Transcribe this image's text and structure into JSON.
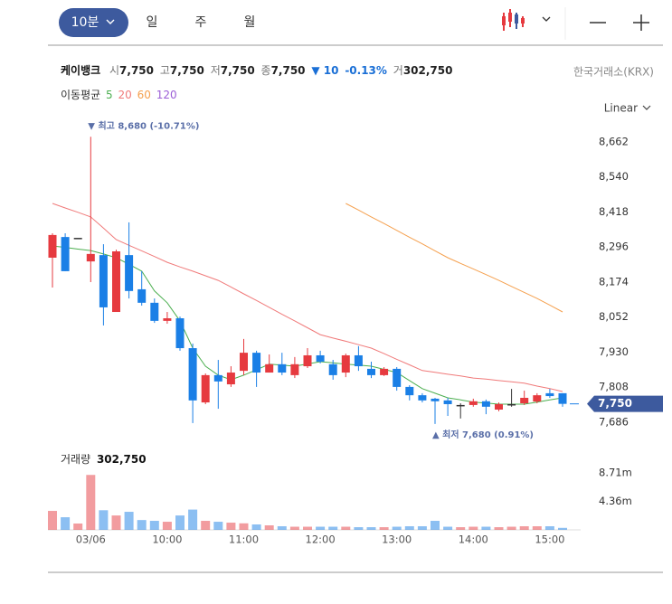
{
  "toolbar": {
    "intervals": [
      "10분",
      "일",
      "주",
      "월"
    ],
    "scale": "Linear"
  },
  "header": {
    "name": "케이뱅크",
    "quote": [
      {
        "label": "시",
        "value": "7,750"
      },
      {
        "label": "고",
        "value": "7,750"
      },
      {
        "label": "저",
        "value": "7,750"
      },
      {
        "label": "종",
        "value": "7,750"
      }
    ],
    "change": "▼ 10",
    "change_pct": "-0.13%",
    "volume_label": "거",
    "volume": "302,750",
    "exchange": "한국거래소(KRX)"
  },
  "chart_data": {
    "type": "candlestick",
    "ma_label": "이동평균",
    "categories": [
      null,
      null,
      null,
      "03/06",
      null,
      null,
      null,
      null,
      null,
      "10:00",
      null,
      null,
      null,
      null,
      null,
      "11:00",
      null,
      null,
      null,
      null,
      null,
      "12:00",
      null,
      null,
      null,
      null,
      null,
      "13:00",
      null,
      null,
      null,
      null,
      null,
      "14:00",
      null,
      null,
      null,
      null,
      null,
      "15:00",
      null
    ],
    "open": [
      8259,
      8331,
      8328,
      8246,
      8268,
      8070,
      8268,
      8149,
      8102,
      8039,
      8048,
      7944,
      7755,
      7850,
      7818,
      7865,
      7928,
      7859,
      7888,
      7850,
      7881,
      7919,
      7888,
      7859,
      7919,
      7872,
      7850,
      7872,
      7809,
      7780,
      7768,
      7762,
      7746,
      7746,
      7759,
      7730,
      7749,
      7752,
      7758,
      7787,
      7787
    ],
    "high": [
      8344,
      8344,
      8328,
      8680,
      8306,
      8287,
      8382,
      8212,
      8117,
      8070,
      8054,
      7960,
      7856,
      7903,
      7881,
      7976,
      7935,
      7922,
      7928,
      7913,
      7944,
      7935,
      7903,
      7925,
      7951,
      7897,
      7878,
      7878,
      7815,
      7787,
      7771,
      7771,
      7752,
      7768,
      7765,
      7755,
      7802,
      7796,
      7787,
      7802,
      7787
    ],
    "low": [
      8155,
      8212,
      8328,
      8174,
      8023,
      8070,
      8117,
      8092,
      8032,
      8029,
      7935,
      7683,
      7749,
      7733,
      7809,
      7850,
      7809,
      7859,
      7850,
      7840,
      7875,
      7891,
      7834,
      7843,
      7865,
      7840,
      7847,
      7796,
      7762,
      7755,
      7680,
      7708,
      7699,
      7740,
      7714,
      7724,
      7740,
      7746,
      7752,
      7771,
      7740
    ],
    "close": [
      8338,
      8212,
      8328,
      8272,
      8086,
      8281,
      8143,
      8102,
      8039,
      8048,
      7944,
      7762,
      7850,
      7828,
      7859,
      7928,
      7859,
      7888,
      7859,
      7888,
      7919,
      7897,
      7850,
      7919,
      7881,
      7850,
      7872,
      7809,
      7780,
      7762,
      7759,
      7749,
      7746,
      7759,
      7740,
      7749,
      7749,
      7771,
      7780,
      7777,
      7750
    ],
    "up_color": "#e63a3f",
    "down_color": "#1a7fe6",
    "flat_color": "#333333",
    "ylim": [
      7645,
      8747
    ],
    "yticks": [
      {
        "value": 7686,
        "label": "7,686"
      },
      {
        "value": 7808,
        "label": "7,808"
      },
      {
        "value": 7930,
        "label": "7,930"
      },
      {
        "value": 8052,
        "label": "8,052"
      },
      {
        "value": 8174,
        "label": "8,174"
      },
      {
        "value": 8296,
        "label": "8,296"
      },
      {
        "value": 8418,
        "label": "8,418"
      },
      {
        "value": 8540,
        "label": "8,540"
      },
      {
        "value": 8662,
        "label": "8,662"
      }
    ],
    "last_price": {
      "value": 7750,
      "label": "7,750"
    },
    "high_annotation": "▼ 최고 8,680 (-10.71%)",
    "low_annotation": "▲ 최저 7,680 (0.91%)",
    "series": [
      {
        "name": "5",
        "color": "#4caf50",
        "values": [
          8300,
          8295,
          8289,
          8284,
          8272,
          8259,
          8236,
          8212,
          8143,
          8102,
          8039,
          7944,
          7881,
          7850,
          7834,
          7850,
          7869,
          7888,
          7885,
          7881,
          7889,
          7897,
          7893,
          7888,
          7885,
          7881,
          7870,
          7859,
          7831,
          7803,
          7787,
          7771,
          7764,
          7756,
          7753,
          7749,
          7749,
          7749,
          7756,
          7764,
          7771
        ]
      },
      {
        "name": "20",
        "color": "#f07a7a",
        "values": [
          8448,
          8432,
          8417,
          8401,
          8362,
          8322,
          8302,
          8283,
          8263,
          8243,
          8227,
          8212,
          8196,
          8180,
          8157,
          8133,
          8110,
          8086,
          8062,
          8039,
          8015,
          7991,
          7979,
          7968,
          7956,
          7944,
          7925,
          7905,
          7886,
          7866,
          7860,
          7853,
          7847,
          7840,
          7836,
          7831,
          7827,
          7822,
          7812,
          7803,
          7793
        ]
      },
      {
        "name": "60",
        "color": "#f5a04e",
        "values": [
          null,
          null,
          null,
          null,
          null,
          null,
          null,
          null,
          null,
          null,
          null,
          null,
          null,
          null,
          null,
          null,
          null,
          null,
          null,
          null,
          null,
          null,
          null,
          8448,
          8425,
          8401,
          8378,
          8354,
          8330,
          8307,
          8283,
          8259,
          8239,
          8220,
          8200,
          8180,
          8159,
          8138,
          8117,
          8094,
          8070
        ]
      },
      {
        "name": "120",
        "color": "#9c5fd6",
        "values": [
          null,
          null,
          null,
          null,
          null,
          null,
          null,
          null,
          null,
          null,
          null,
          null,
          null,
          null,
          null,
          null,
          null,
          null,
          null,
          null,
          null,
          null,
          null,
          null,
          null,
          null,
          null,
          null,
          null,
          null,
          null,
          null,
          null,
          null,
          null,
          null,
          null,
          null,
          null,
          null,
          null
        ]
      }
    ],
    "volume": {
      "label": "거래량",
      "value_label": "302,750",
      "values": [
        2900000,
        1930000,
        970000,
        8400000,
        3000000,
        2200000,
        2760000,
        1500000,
        1380000,
        1240000,
        2200000,
        3100000,
        1380000,
        1240000,
        1100000,
        1000000,
        830000,
        690000,
        550000,
        480000,
        480000,
        480000,
        480000,
        480000,
        410000,
        410000,
        410000,
        480000,
        550000,
        550000,
        1380000,
        480000,
        410000,
        480000,
        480000,
        410000,
        480000,
        550000,
        550000,
        550000,
        302750
      ],
      "ylim": [
        0,
        9540000
      ],
      "yticks": [
        {
          "value": 4360000,
          "label": "4.36m"
        },
        {
          "value": 8710000,
          "label": "8.71m"
        }
      ]
    }
  }
}
